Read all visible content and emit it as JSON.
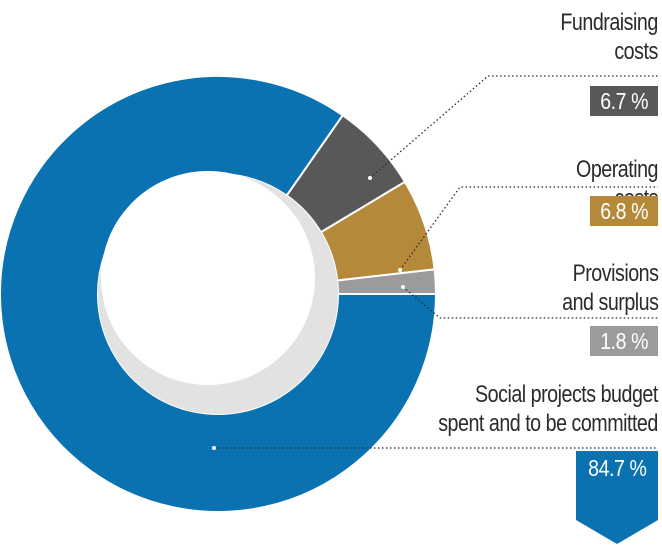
{
  "chart_data": {
    "type": "pie",
    "style": "donut",
    "slices": [
      {
        "label": "Social projects budget spent and to be committed",
        "value": 84.7,
        "display": "84.7 %",
        "color": "#0a72b0"
      },
      {
        "label": "Fundraising costs",
        "value": 6.7,
        "display": "6.7 %",
        "color": "#58585a"
      },
      {
        "label": "Operating costs",
        "value": 6.8,
        "display": "6.8 %",
        "color": "#b5893a"
      },
      {
        "label": "Provisions and surplus",
        "value": 1.8,
        "display": "1.8 %",
        "color": "#9b9b9d"
      }
    ],
    "legend": "none"
  },
  "labels": {
    "fundraising": {
      "line1": "Fundraising",
      "line2": "costs",
      "value": "6.7 %"
    },
    "operating": {
      "line1": "Operating",
      "line2": "costs",
      "value": "6.8 %"
    },
    "provisions": {
      "line1": "Provisions",
      "line2": "and surplus",
      "value": "1.8 %"
    },
    "social": {
      "line1": "Social projects budget",
      "line2": "spent and to be committed",
      "value": "84.7 %"
    }
  }
}
